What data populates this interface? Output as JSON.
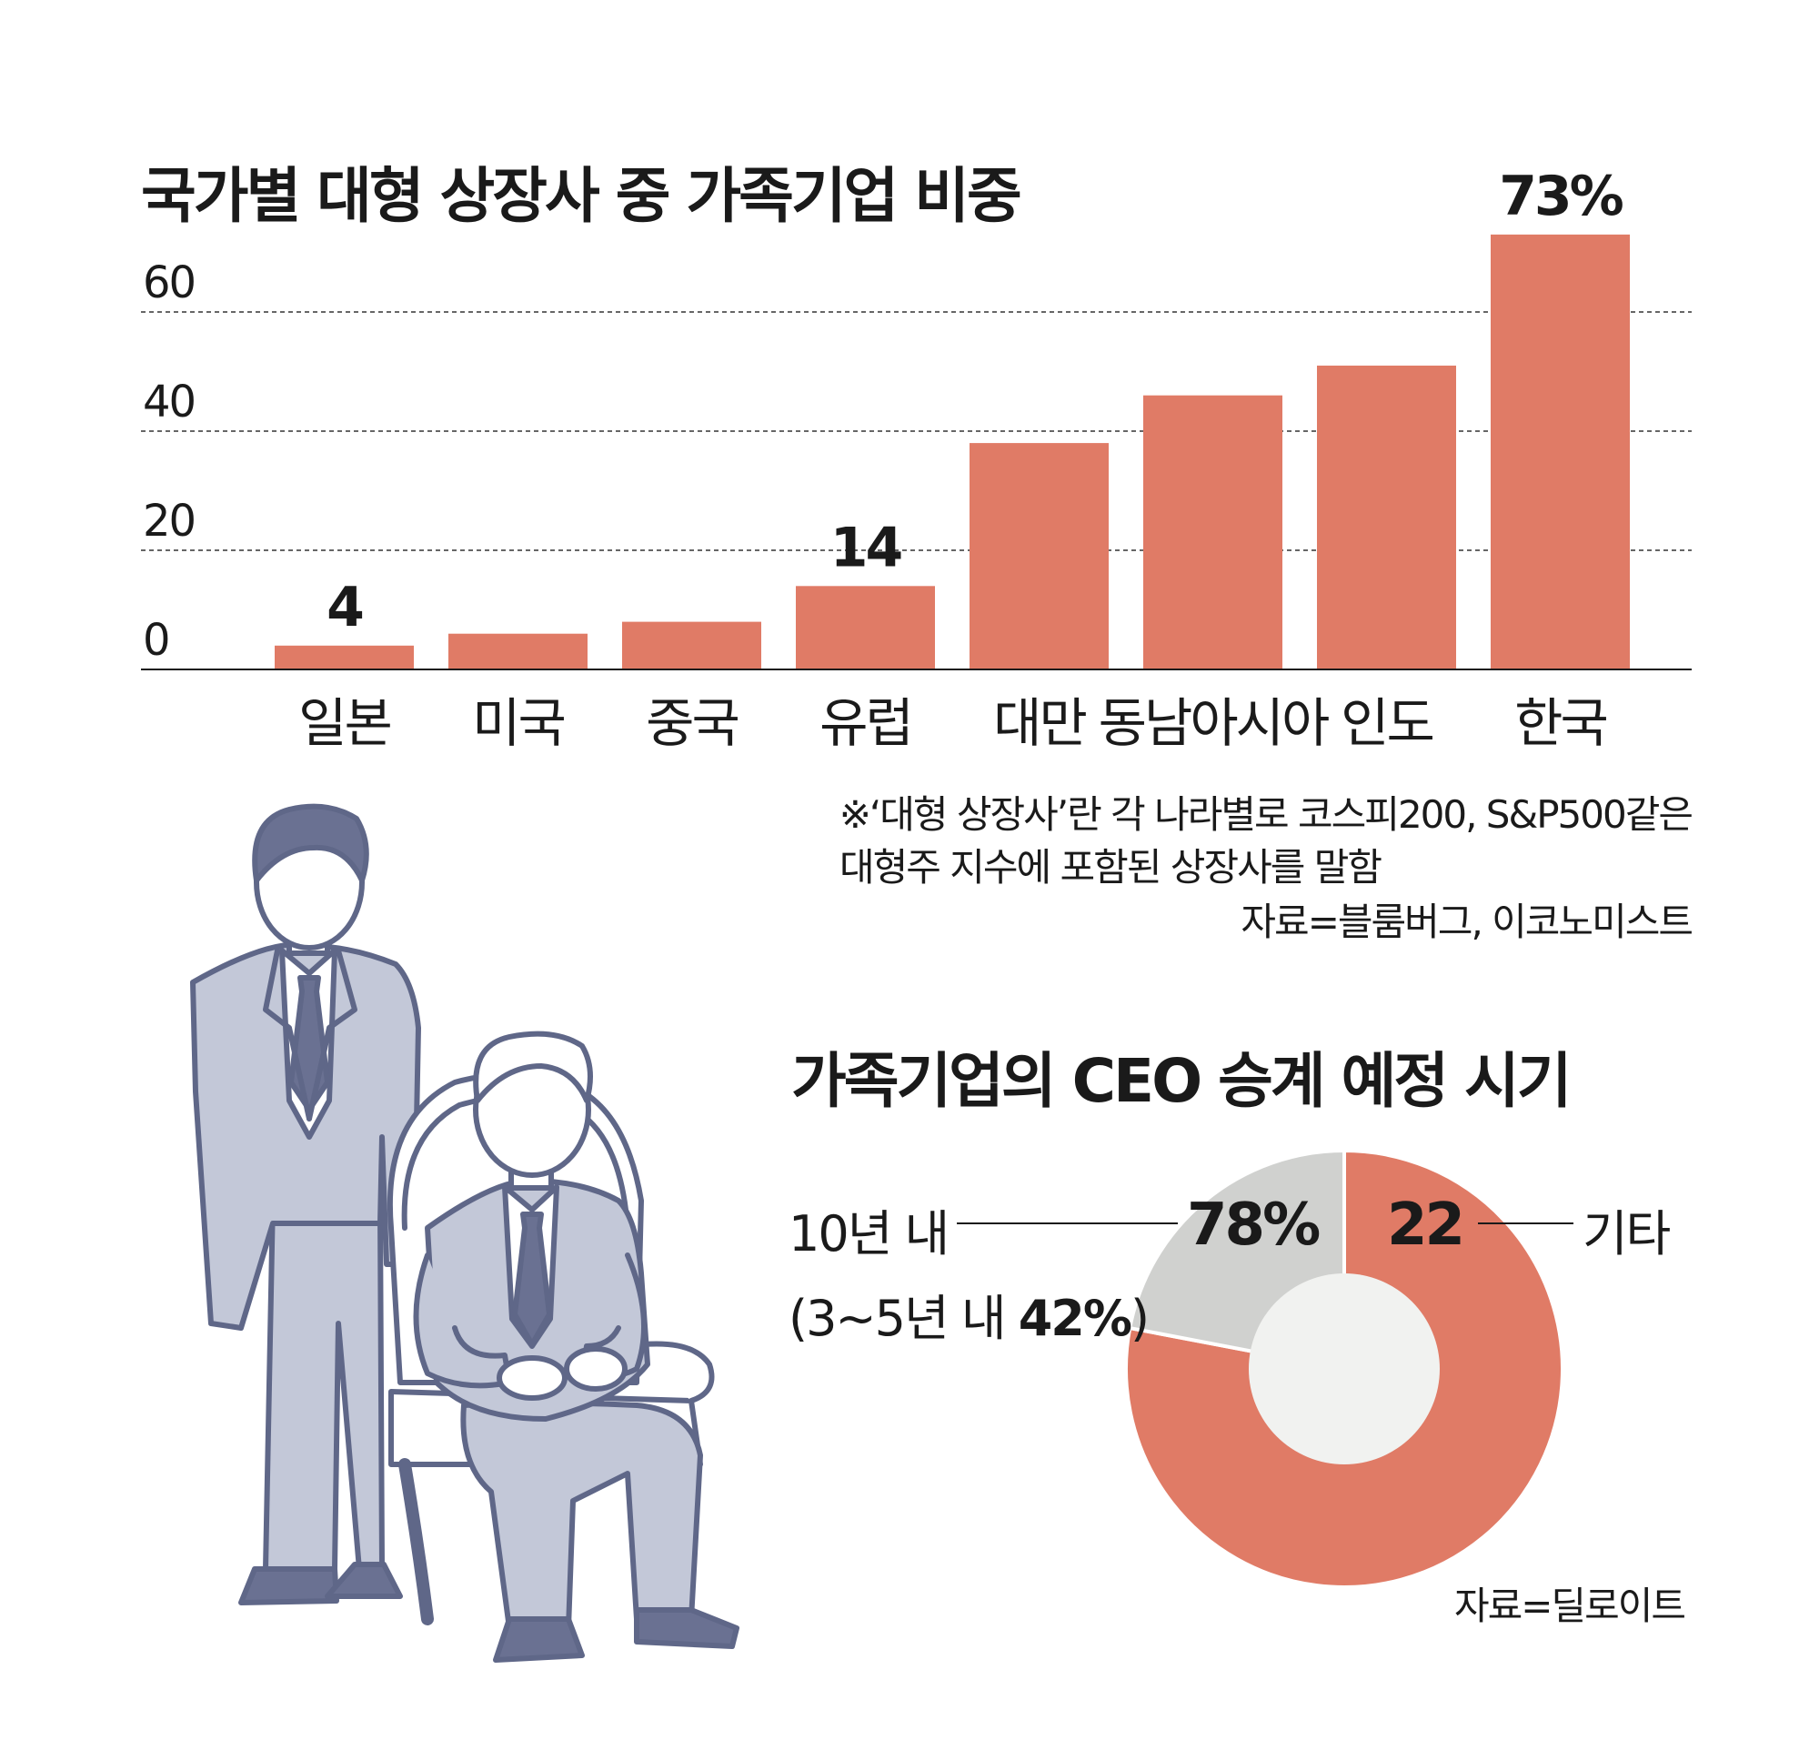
{
  "chart_data": [
    {
      "type": "bar",
      "title": "국가별 대형 상장사 중 가족기업 비중",
      "categories": [
        "일본",
        "미국",
        "중국",
        "유럽",
        "대만",
        "동남아시아",
        "인도",
        "한국"
      ],
      "values": [
        4,
        6,
        8,
        14,
        38,
        46,
        51,
        73
      ],
      "data_labels": [
        {
          "index": 0,
          "text": "4"
        },
        {
          "index": 3,
          "text": "14"
        },
        {
          "index": 7,
          "text": "73%"
        }
      ],
      "y_ticks": [
        "0",
        "20",
        "40",
        "60"
      ],
      "ylim": [
        0,
        80
      ],
      "grid": "dashed horizontal",
      "bar_color": "#E07B66",
      "note_lines": [
        "※‘대형 상장사’란 각 나라별로 코스피200, S&P500같은",
        "대형주 지수에 포함된 상장사를 말함"
      ],
      "source": "자료=블룸버그, 이코노미스트"
    },
    {
      "type": "pie",
      "title": "가족기업의 CEO 승계 예정 시기",
      "slices": [
        {
          "name": "10년 내",
          "value": 78,
          "label": "78%",
          "color": "#E07B66"
        },
        {
          "name": "기타",
          "value": 22,
          "label": "22",
          "color": "#D0D1CF"
        }
      ],
      "sub_label_prefix": "(3~5년 내 ",
      "sub_label_value": "42%",
      "sub_label_suffix": ")",
      "source": "자료=딜로이트"
    }
  ],
  "colors": {
    "accent": "#E07B66",
    "gray_slice": "#D0D1CF",
    "donut_hole": "#F1F2F0",
    "suit": "#C3C8D8",
    "outline": "#5F6788",
    "tie": "#7A819E"
  }
}
